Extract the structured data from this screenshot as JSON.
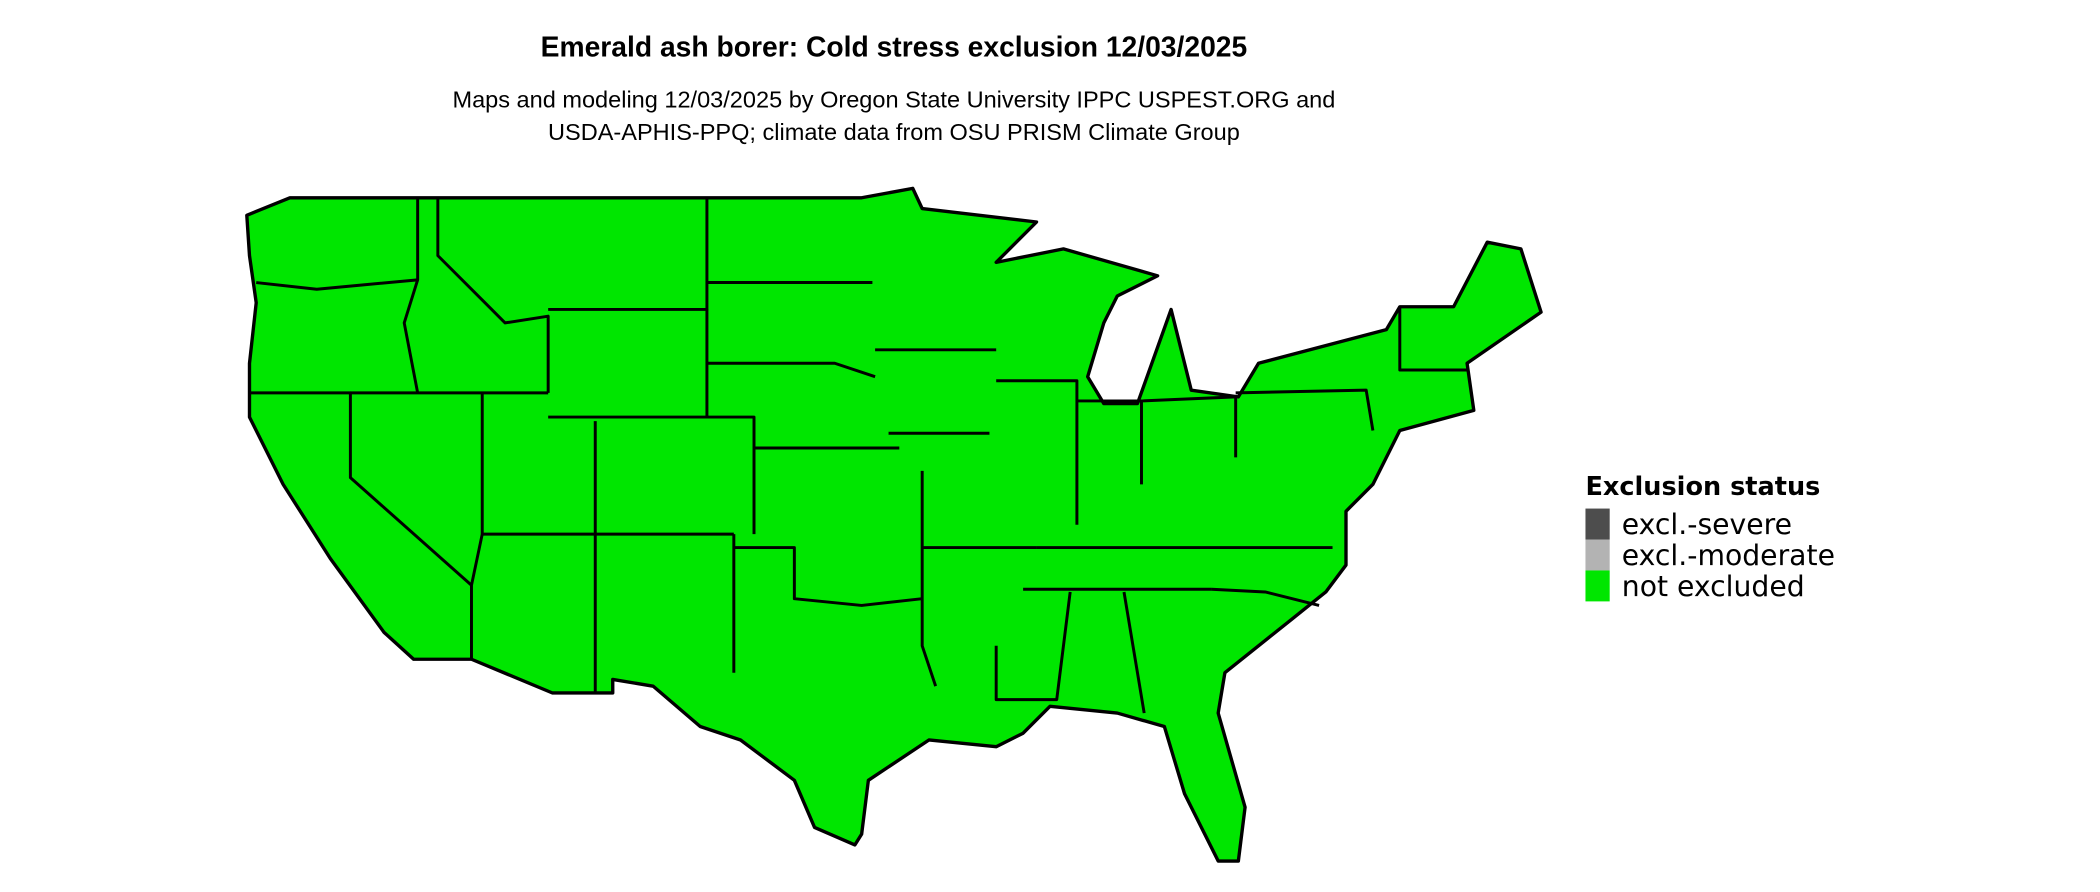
{
  "title": "Emerald ash borer: Cold stress exclusion 12/03/2025",
  "subtitle_line1": "Maps and modeling 12/03/2025 by Oregon State University IPPC USPEST.ORG and",
  "subtitle_line2": "USDA-APHIS-PPQ; climate data from OSU PRISM Climate Group",
  "map": {
    "region": "Contiguous United States",
    "fill_color": "#00e600",
    "border_color": "#000000"
  },
  "legend": {
    "title": "Exclusion status",
    "items": [
      {
        "label": "excl.-severe",
        "color": "#4d4d4d"
      },
      {
        "label": "excl.-moderate",
        "color": "#b3b3b3"
      },
      {
        "label": "not excluded",
        "color": "#00e600"
      }
    ]
  }
}
